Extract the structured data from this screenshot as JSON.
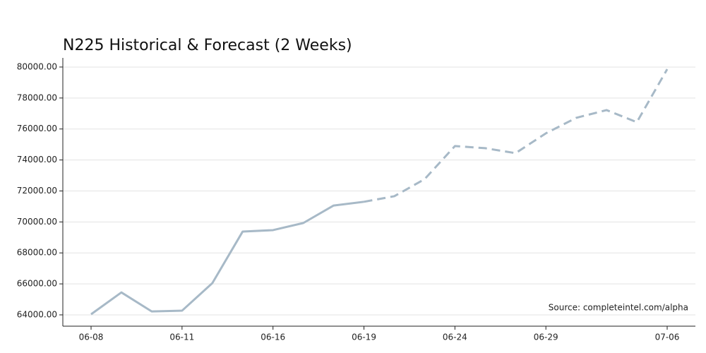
{
  "chart_data": {
    "type": "line",
    "title": "N225 Historical & Forecast (2 Weeks)",
    "annotation": "Source: completeintel.com/alpha",
    "categories": [
      "06-08",
      null,
      null,
      "06-11",
      null,
      null,
      "06-16",
      null,
      null,
      "06-19",
      null,
      null,
      "06-24",
      null,
      null,
      "06-29",
      null,
      null,
      null,
      "07-06"
    ],
    "series": [
      {
        "color": "#a7b9c7",
        "dash": false,
        "values": [
          64040,
          65450,
          64220,
          64270,
          66050,
          69380,
          69470,
          69930,
          71060,
          71300,
          null,
          null,
          null,
          null,
          null,
          null,
          null,
          null,
          null,
          null
        ]
      },
      {
        "color": "#a7b9c7",
        "dash": true,
        "values": [
          null,
          null,
          null,
          null,
          null,
          null,
          null,
          null,
          null,
          71300,
          71660,
          72760,
          74900,
          74760,
          74440,
          75720,
          76720,
          77220,
          76440,
          79860
        ]
      }
    ],
    "ylim": [
      63270,
      80590
    ],
    "yticks": [
      {
        "value": 64000,
        "label": "64000.00"
      },
      {
        "value": 66000,
        "label": "66000.00"
      },
      {
        "value": 68000,
        "label": "68000.00"
      },
      {
        "value": 70000,
        "label": "70000.00"
      },
      {
        "value": 72000,
        "label": "72000.00"
      },
      {
        "value": 74000,
        "label": "74000.00"
      },
      {
        "value": 76000,
        "label": "76000.00"
      },
      {
        "value": 78000,
        "label": "78000.00"
      },
      {
        "value": 80000,
        "label": "80000.00"
      }
    ],
    "grid": true
  }
}
